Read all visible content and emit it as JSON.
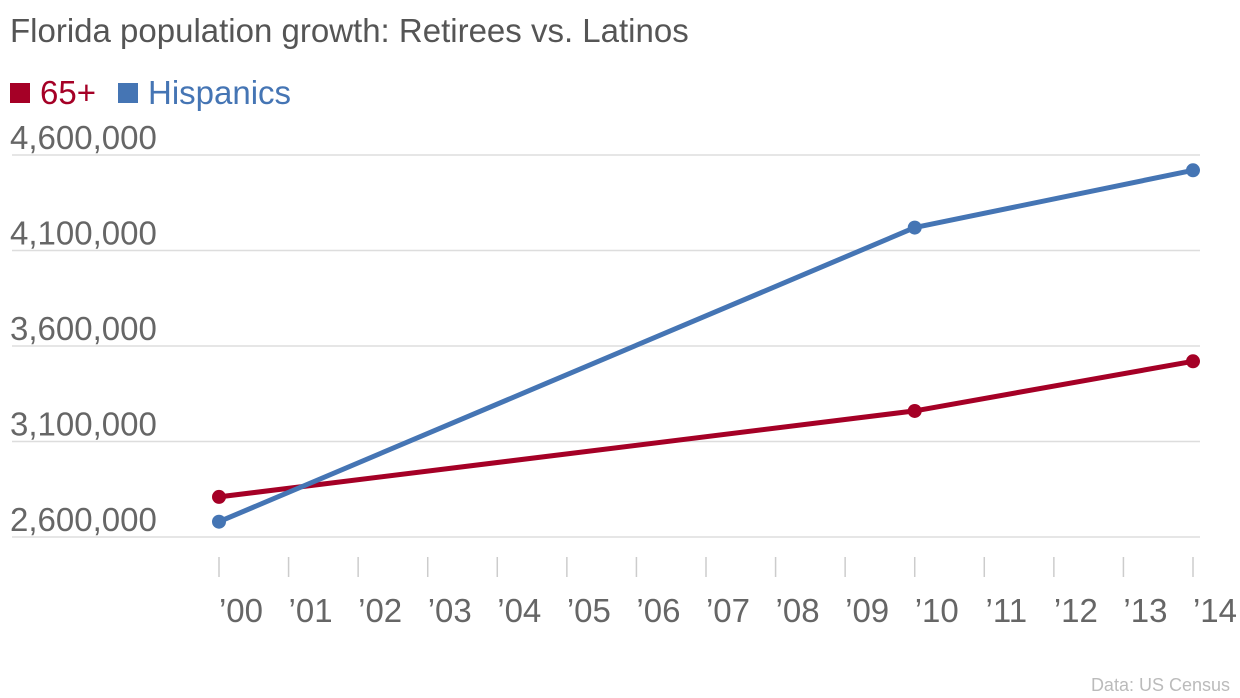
{
  "chart_data": {
    "type": "line",
    "title": "Florida population growth: Retirees vs. Latinos",
    "source": "Data: US Census",
    "categories": [
      "’00",
      "’01",
      "’02",
      "’03",
      "’04",
      "’05",
      "’06",
      "’07",
      "’08",
      "’09",
      "’10",
      "’11",
      "’12",
      "’13",
      "’14"
    ],
    "x_years": [
      2000,
      2001,
      2002,
      2003,
      2004,
      2005,
      2006,
      2007,
      2008,
      2009,
      2010,
      2011,
      2012,
      2013,
      2014
    ],
    "y_ticks": [
      {
        "value": 2600000,
        "label": "2,600,000"
      },
      {
        "value": 3100000,
        "label": "3,100,000"
      },
      {
        "value": 3600000,
        "label": "3,600,000"
      },
      {
        "value": 4100000,
        "label": "4,100,000"
      },
      {
        "value": 4600000,
        "label": "4,600,000"
      }
    ],
    "ylim": [
      2600000,
      4600000
    ],
    "grid": true,
    "legend_position": "top-left",
    "series": [
      {
        "name": "65+",
        "color": "#a50026",
        "points": [
          {
            "x": 2000,
            "y": 2810000
          },
          {
            "x": 2010,
            "y": 3260000
          },
          {
            "x": 2014,
            "y": 3520000
          }
        ]
      },
      {
        "name": "Hispanics",
        "color": "#4575b4",
        "points": [
          {
            "x": 2000,
            "y": 2680000
          },
          {
            "x": 2010,
            "y": 4220000
          },
          {
            "x": 2014,
            "y": 4520000
          }
        ]
      }
    ]
  }
}
